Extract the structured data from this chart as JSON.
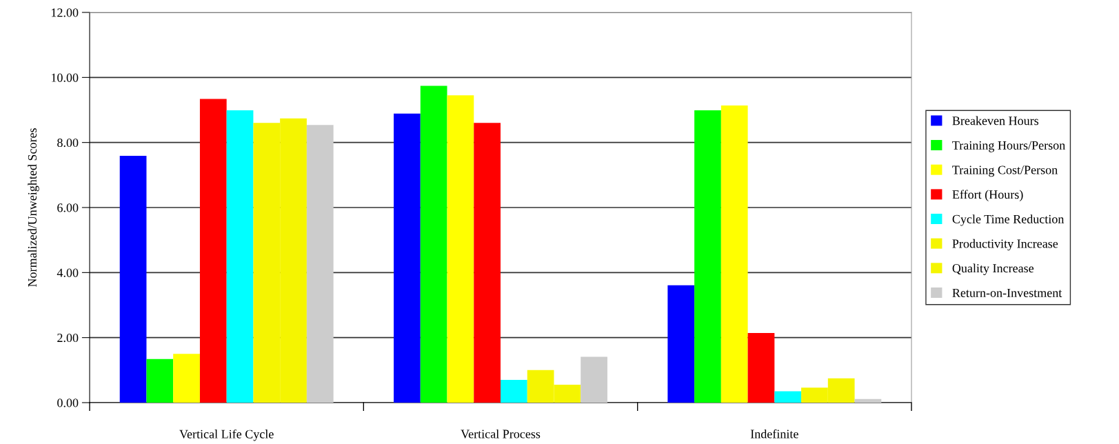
{
  "chart_data": {
    "type": "bar",
    "ylabel": "Normalized/Unweighted Scores",
    "categories": [
      "Vertical Life Cycle",
      "Vertical Process",
      "Indefinite"
    ],
    "series": [
      {
        "name": "Breakeven Hours",
        "color": "#0000ff",
        "values": [
          7.59,
          8.89,
          3.61
        ]
      },
      {
        "name": "Training Hours/Person",
        "color": "#00ff00",
        "values": [
          1.34,
          9.74,
          8.99
        ]
      },
      {
        "name": "Training Cost/Person",
        "color": "#ffff00",
        "values": [
          1.5,
          9.45,
          9.14
        ]
      },
      {
        "name": "Effort (Hours)",
        "color": "#ff0000",
        "values": [
          9.34,
          8.6,
          2.14
        ]
      },
      {
        "name": "Cycle Time Reduction",
        "color": "#00ffff",
        "values": [
          8.99,
          0.7,
          0.35
        ]
      },
      {
        "name": "Productivity Increase",
        "color": "#f5f500",
        "values": [
          8.6,
          1.0,
          0.46
        ]
      },
      {
        "name": "Quality Increase",
        "color": "#f5f500",
        "values": [
          8.74,
          0.55,
          0.75
        ]
      },
      {
        "name": "Return-on-Investment",
        "color": "#cccccc",
        "values": [
          8.54,
          1.41,
          0.11
        ]
      }
    ],
    "ylim": [
      0,
      12
    ],
    "yticks": [
      {
        "value": 0,
        "label": "0.00"
      },
      {
        "value": 2,
        "label": "2.00"
      },
      {
        "value": 4,
        "label": "4.00"
      },
      {
        "value": 6,
        "label": "6.00"
      },
      {
        "value": 8,
        "label": "8.00"
      },
      {
        "value": 10,
        "label": "10.00"
      },
      {
        "value": 12,
        "label": "12.00"
      }
    ],
    "grid": "y",
    "legend": "right"
  }
}
